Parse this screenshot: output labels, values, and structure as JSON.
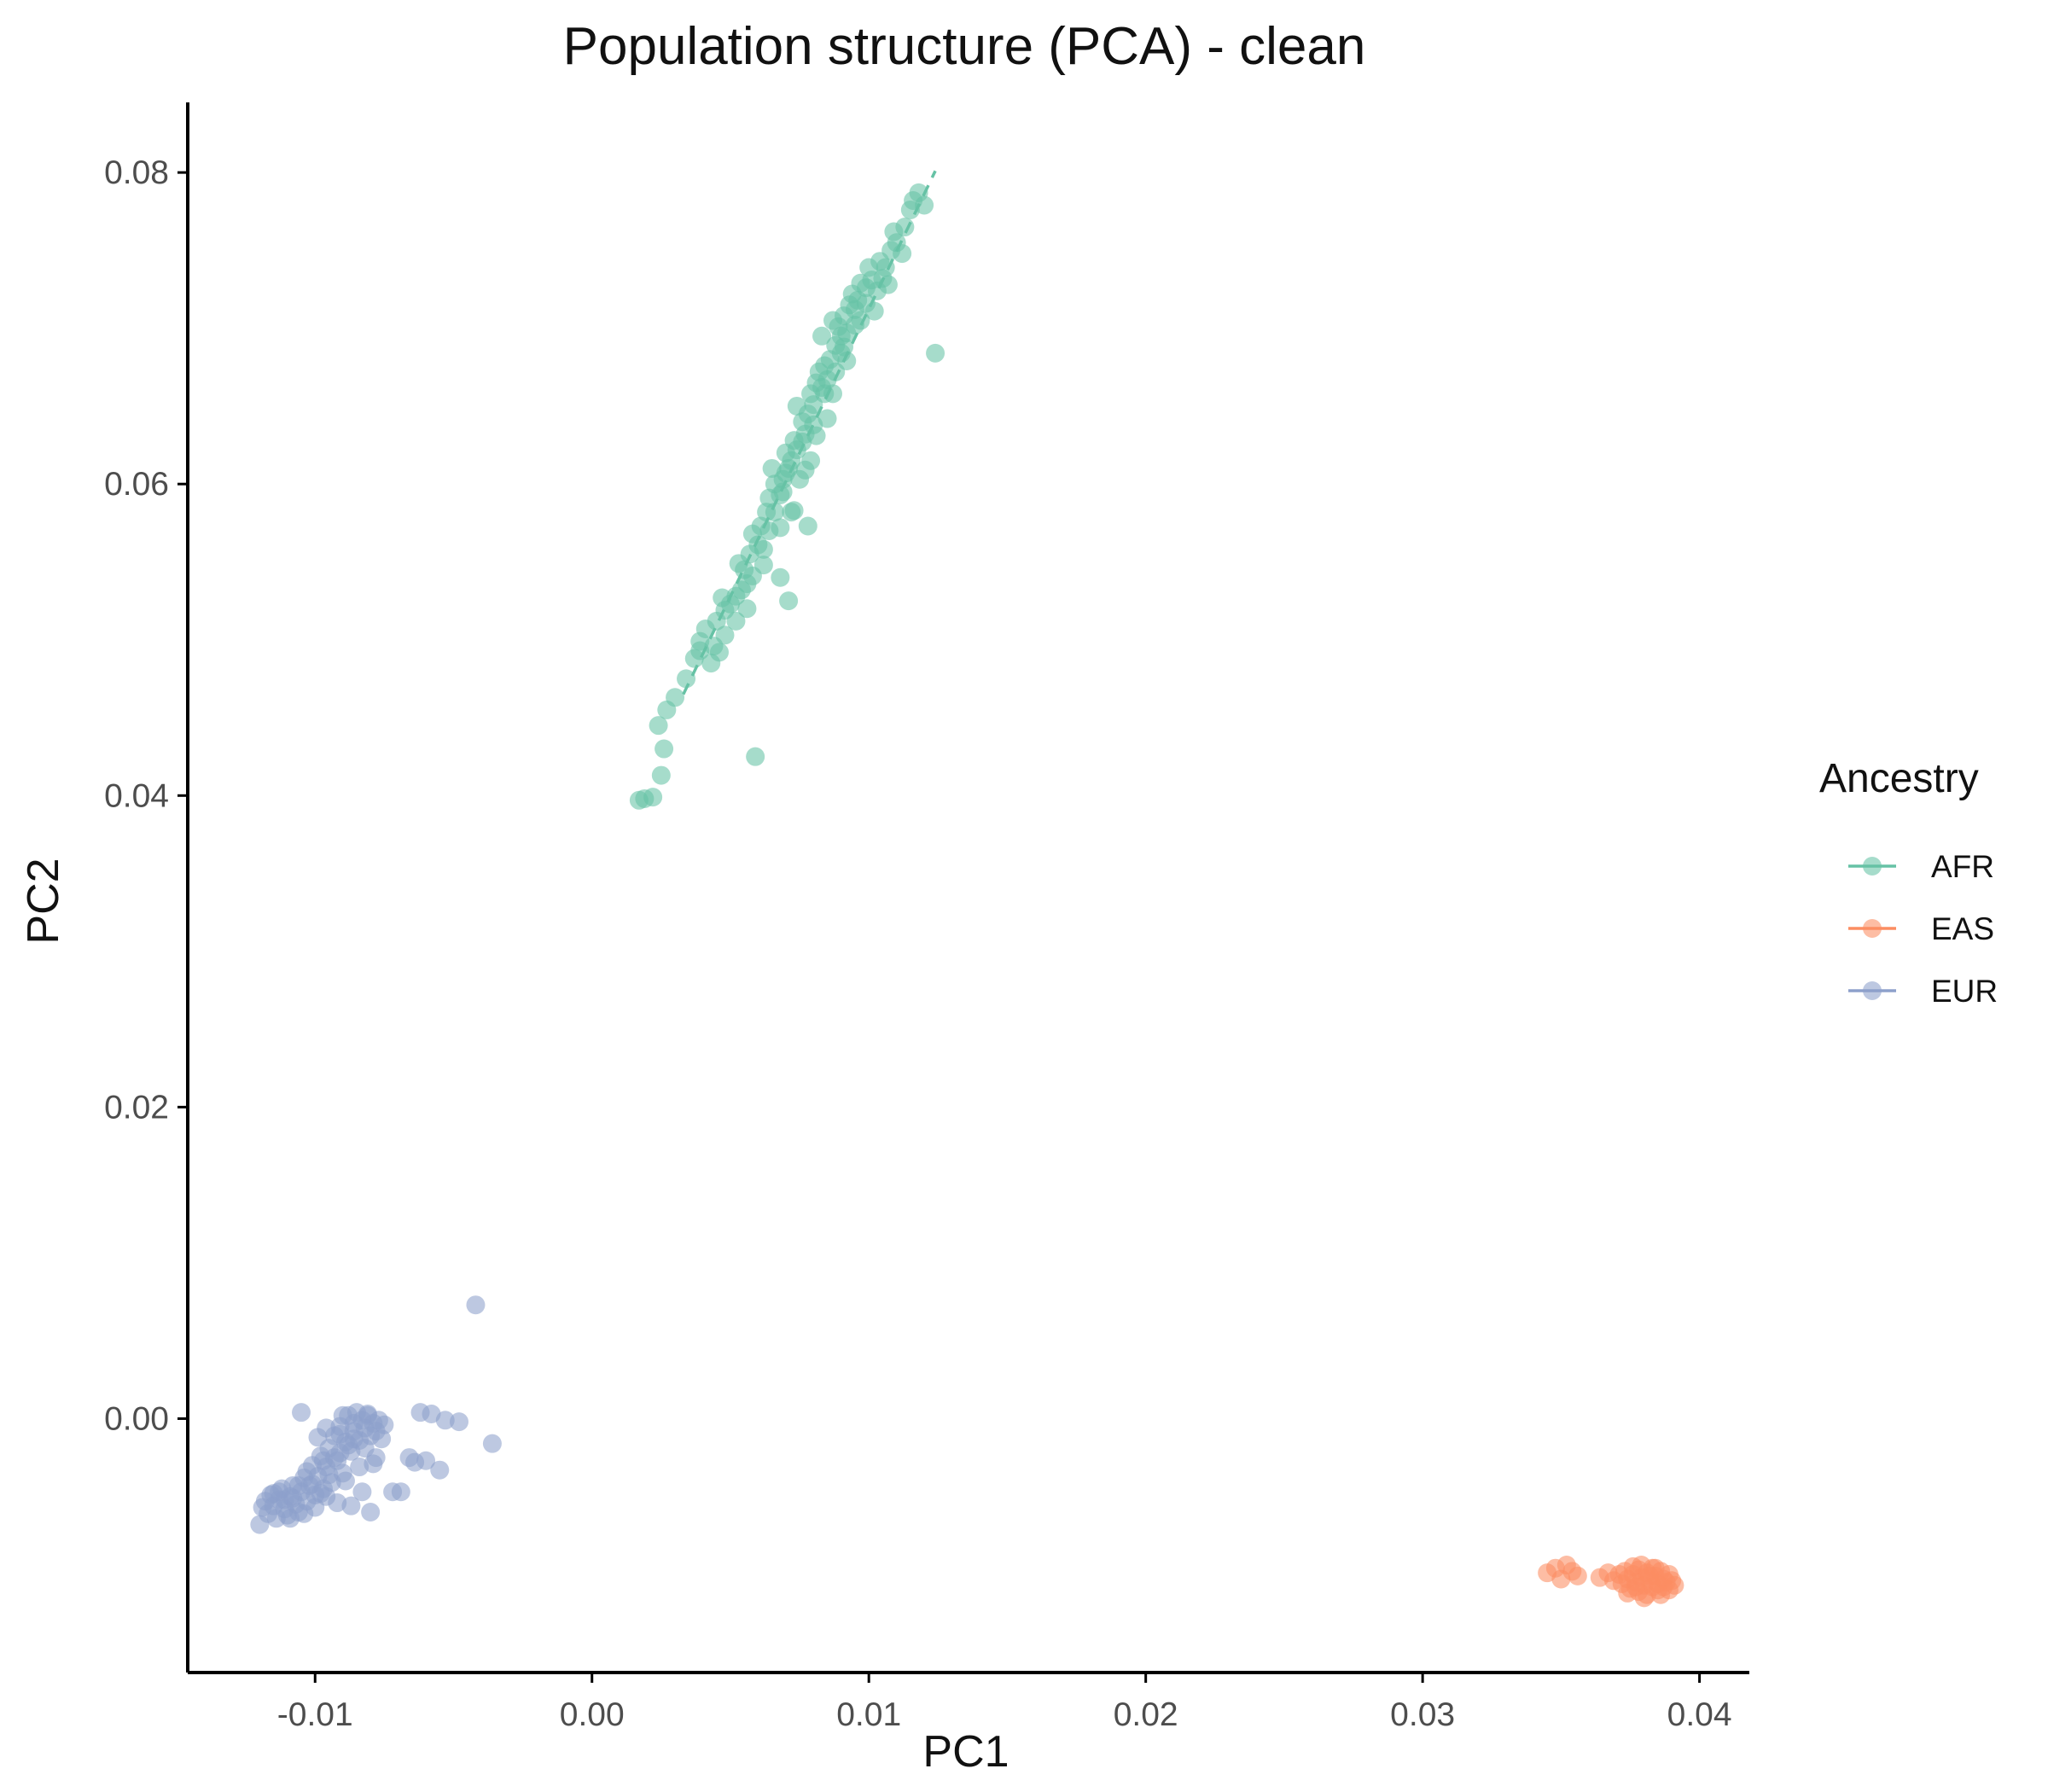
{
  "chart_data": {
    "type": "scatter",
    "title": "Population structure (PCA) - clean",
    "xlabel": "PC1",
    "ylabel": "PC2",
    "xlim": [
      -0.0146,
      0.0418
    ],
    "ylim": [
      -0.0163,
      0.0845
    ],
    "x_ticks": [
      -0.01,
      0.0,
      0.01,
      0.02,
      0.03,
      0.04
    ],
    "x_tick_labels": [
      "-0.01",
      "0.00",
      "0.01",
      "0.02",
      "0.03",
      "0.04"
    ],
    "y_ticks": [
      0.0,
      0.02,
      0.04,
      0.06,
      0.08
    ],
    "y_tick_labels": [
      "0.00",
      "0.02",
      "0.04",
      "0.06",
      "0.08"
    ],
    "grid": false,
    "legend": {
      "title": "Ancestry",
      "position": "right"
    },
    "series": [
      {
        "name": "AFR",
        "color": "#66c2a5",
        "trend_line": {
          "style": "dashed",
          "x": [
            0.0033,
            0.0124
          ],
          "y": [
            0.0465,
            0.0801
          ]
        },
        "points": [
          [
            0.0017,
            0.0397
          ],
          [
            0.0019,
            0.0398
          ],
          [
            0.0022,
            0.0399
          ],
          [
            0.0025,
            0.0413
          ],
          [
            0.0026,
            0.043
          ],
          [
            0.0024,
            0.0445
          ],
          [
            0.0027,
            0.0455
          ],
          [
            0.003,
            0.0463
          ],
          [
            0.0034,
            0.0475
          ],
          [
            0.0037,
            0.0488
          ],
          [
            0.0039,
            0.0499
          ],
          [
            0.0041,
            0.0507
          ],
          [
            0.0044,
            0.0496
          ],
          [
            0.0046,
            0.0492
          ],
          [
            0.0045,
            0.0512
          ],
          [
            0.0048,
            0.0519
          ],
          [
            0.005,
            0.0523
          ],
          [
            0.0052,
            0.0528
          ],
          [
            0.0054,
            0.0532
          ],
          [
            0.0056,
            0.052
          ],
          [
            0.0055,
            0.0545
          ],
          [
            0.0058,
            0.0541
          ],
          [
            0.0057,
            0.0555
          ],
          [
            0.006,
            0.0561
          ],
          [
            0.0059,
            0.0425
          ],
          [
            0.0062,
            0.0558
          ],
          [
            0.0061,
            0.0573
          ],
          [
            0.0064,
            0.057
          ],
          [
            0.0063,
            0.0582
          ],
          [
            0.0066,
            0.0582
          ],
          [
            0.0068,
            0.0593
          ],
          [
            0.0066,
            0.06
          ],
          [
            0.0069,
            0.0603
          ],
          [
            0.0071,
            0.061
          ],
          [
            0.0068,
            0.054
          ],
          [
            0.0071,
            0.0525
          ],
          [
            0.007,
            0.062
          ],
          [
            0.0072,
            0.0615
          ],
          [
            0.0073,
            0.0628
          ],
          [
            0.0074,
            0.0622
          ],
          [
            0.0075,
            0.0603
          ],
          [
            0.0077,
            0.0632
          ],
          [
            0.0076,
            0.064
          ],
          [
            0.0078,
            0.0645
          ],
          [
            0.008,
            0.0651
          ],
          [
            0.0079,
            0.0658
          ],
          [
            0.0081,
            0.0665
          ],
          [
            0.0083,
            0.0662
          ],
          [
            0.0082,
            0.0672
          ],
          [
            0.0084,
            0.0676
          ],
          [
            0.0086,
            0.068
          ],
          [
            0.0085,
            0.0667
          ],
          [
            0.0088,
            0.0689
          ],
          [
            0.0087,
            0.0658
          ],
          [
            0.009,
            0.0695
          ],
          [
            0.0089,
            0.0701
          ],
          [
            0.0092,
            0.0697
          ],
          [
            0.0091,
            0.0708
          ],
          [
            0.0093,
            0.0715
          ],
          [
            0.0095,
            0.0712
          ],
          [
            0.0094,
            0.0722
          ],
          [
            0.0096,
            0.0718
          ],
          [
            0.0097,
            0.0729
          ],
          [
            0.0099,
            0.0726
          ],
          [
            0.0101,
            0.0731
          ],
          [
            0.01,
            0.0739
          ],
          [
            0.0103,
            0.0724
          ],
          [
            0.0104,
            0.0743
          ],
          [
            0.0106,
            0.0739
          ],
          [
            0.0108,
            0.075
          ],
          [
            0.011,
            0.0755
          ],
          [
            0.0109,
            0.0762
          ],
          [
            0.0112,
            0.0748
          ],
          [
            0.0113,
            0.0765
          ],
          [
            0.0115,
            0.0776
          ],
          [
            0.0116,
            0.0782
          ],
          [
            0.0118,
            0.0787
          ],
          [
            0.012,
            0.0779
          ],
          [
            0.0124,
            0.0684
          ],
          [
            0.0078,
            0.0573
          ],
          [
            0.0072,
            0.0582
          ],
          [
            0.0069,
            0.0595
          ],
          [
            0.0065,
            0.061
          ],
          [
            0.0079,
            0.0615
          ],
          [
            0.0074,
            0.065
          ],
          [
            0.0083,
            0.0695
          ],
          [
            0.0087,
            0.0705
          ],
          [
            0.0091,
            0.0688
          ],
          [
            0.0097,
            0.0705
          ],
          [
            0.0102,
            0.0711
          ],
          [
            0.0092,
            0.0679
          ],
          [
            0.0085,
            0.0642
          ],
          [
            0.0081,
            0.0631
          ],
          [
            0.0077,
            0.0609
          ],
          [
            0.0073,
            0.0583
          ],
          [
            0.0068,
            0.0572
          ],
          [
            0.0062,
            0.0548
          ],
          [
            0.0056,
            0.0536
          ],
          [
            0.0052,
            0.0512
          ],
          [
            0.0048,
            0.0503
          ],
          [
            0.0043,
            0.0485
          ],
          [
            0.0039,
            0.0493
          ],
          [
            0.0047,
            0.0527
          ],
          [
            0.0053,
            0.0549
          ],
          [
            0.0058,
            0.0568
          ],
          [
            0.0064,
            0.0591
          ],
          [
            0.007,
            0.0607
          ],
          [
            0.0076,
            0.0627
          ],
          [
            0.008,
            0.0638
          ],
          [
            0.0084,
            0.0658
          ],
          [
            0.0088,
            0.0672
          ],
          [
            0.009,
            0.0684
          ],
          [
            0.0095,
            0.0702
          ],
          [
            0.0099,
            0.0716
          ],
          [
            0.0105,
            0.0732
          ],
          [
            0.0107,
            0.0728
          ]
        ]
      },
      {
        "name": "EAS",
        "color": "#fc8d62",
        "points": [
          [
            0.0345,
            -0.0099
          ],
          [
            0.0348,
            -0.0096
          ],
          [
            0.035,
            -0.0103
          ],
          [
            0.0352,
            -0.0094
          ],
          [
            0.0354,
            -0.0098
          ],
          [
            0.0356,
            -0.0101
          ],
          [
            0.0364,
            -0.0102
          ],
          [
            0.0367,
            -0.0099
          ],
          [
            0.0369,
            -0.0104
          ],
          [
            0.0371,
            -0.01
          ],
          [
            0.0372,
            -0.0106
          ],
          [
            0.0373,
            -0.0098
          ],
          [
            0.0374,
            -0.0103
          ],
          [
            0.0375,
            -0.0109
          ],
          [
            0.0376,
            -0.01
          ],
          [
            0.0377,
            -0.0105
          ],
          [
            0.0378,
            -0.0097
          ],
          [
            0.0378,
            -0.0111
          ],
          [
            0.0379,
            -0.0102
          ],
          [
            0.038,
            -0.0107
          ],
          [
            0.0381,
            -0.0099
          ],
          [
            0.0381,
            -0.0113
          ],
          [
            0.0382,
            -0.0104
          ],
          [
            0.0383,
            -0.0108
          ],
          [
            0.0383,
            -0.0096
          ],
          [
            0.0384,
            -0.0101
          ],
          [
            0.0385,
            -0.0106
          ],
          [
            0.0385,
            -0.011
          ],
          [
            0.0386,
            -0.0098
          ],
          [
            0.0387,
            -0.0103
          ],
          [
            0.0387,
            -0.0108
          ],
          [
            0.0388,
            -0.0105
          ],
          [
            0.0389,
            -0.01
          ],
          [
            0.0389,
            -0.011
          ],
          [
            0.039,
            -0.0104
          ],
          [
            0.0391,
            -0.0107
          ],
          [
            0.0376,
            -0.0095
          ],
          [
            0.038,
            -0.0115
          ],
          [
            0.0374,
            -0.0112
          ],
          [
            0.0386,
            -0.0113
          ],
          [
            0.0379,
            -0.0094
          ],
          [
            0.0384,
            -0.0096
          ],
          [
            0.0377,
            -0.0108
          ],
          [
            0.0382,
            -0.0101
          ]
        ]
      },
      {
        "name": "EUR",
        "color": "#8da0cb",
        "points": [
          [
            -0.012,
            -0.0068
          ],
          [
            -0.0119,
            -0.0057
          ],
          [
            -0.0118,
            -0.0053
          ],
          [
            -0.0117,
            -0.0061
          ],
          [
            -0.0116,
            -0.0049
          ],
          [
            -0.0115,
            -0.0056
          ],
          [
            -0.0114,
            -0.0064
          ],
          [
            -0.0113,
            -0.0052
          ],
          [
            -0.0112,
            -0.0045
          ],
          [
            -0.0111,
            -0.0058
          ],
          [
            -0.011,
            -0.0062
          ],
          [
            -0.0109,
            -0.005
          ],
          [
            -0.0108,
            -0.0043
          ],
          [
            -0.0107,
            -0.0055
          ],
          [
            -0.0106,
            -0.006
          ],
          [
            -0.0105,
            -0.0047
          ],
          [
            -0.0104,
            -0.0038
          ],
          [
            -0.0103,
            -0.0053
          ],
          [
            -0.0102,
            -0.0043
          ],
          [
            -0.0101,
            -0.003
          ],
          [
            -0.01,
            -0.0049
          ],
          [
            -0.0099,
            -0.0037
          ],
          [
            -0.0098,
            -0.0024
          ],
          [
            -0.0097,
            -0.0045
          ],
          [
            -0.0096,
            -0.0031
          ],
          [
            -0.0095,
            -0.0019
          ],
          [
            -0.0094,
            -0.0041
          ],
          [
            -0.0093,
            -0.0011
          ],
          [
            -0.0092,
            -0.0027
          ],
          [
            -0.0091,
            -0.0005
          ],
          [
            -0.009,
            -0.0035
          ],
          [
            -0.0089,
            -0.0015
          ],
          [
            -0.0088,
            0.0002
          ],
          [
            -0.0087,
            -0.0021
          ],
          [
            -0.0086,
            -0.0008
          ],
          [
            -0.0085,
            0.0004
          ],
          [
            -0.0084,
            -0.0014
          ],
          [
            -0.0083,
            -0.0001
          ],
          [
            -0.0082,
            -0.0006
          ],
          [
            -0.0081,
            0.0003
          ],
          [
            -0.008,
            -0.0011
          ],
          [
            -0.0079,
            -0.0003
          ],
          [
            -0.0078,
            -0.0008
          ],
          [
            -0.0077,
            -0.0001
          ],
          [
            -0.0076,
            -0.0013
          ],
          [
            -0.0075,
            -0.0004
          ],
          [
            -0.0105,
            0.0004
          ],
          [
            -0.009,
            0.0002
          ],
          [
            -0.0081,
            0.0002
          ],
          [
            -0.0088,
            -0.0017
          ],
          [
            -0.0097,
            -0.0027
          ],
          [
            -0.0079,
            -0.0029
          ],
          [
            -0.0083,
            -0.0047
          ],
          [
            -0.0087,
            -0.0056
          ],
          [
            -0.008,
            -0.006
          ],
          [
            -0.0072,
            -0.0047
          ],
          [
            -0.0069,
            -0.0047
          ],
          [
            -0.0066,
            -0.0025
          ],
          [
            -0.0062,
            0.0004
          ],
          [
            -0.006,
            -0.0027
          ],
          [
            -0.0058,
            0.0003
          ],
          [
            -0.0055,
            -0.0033
          ],
          [
            -0.0053,
            -0.0001
          ],
          [
            -0.0048,
            -0.0002
          ],
          [
            -0.0036,
            -0.0016
          ],
          [
            -0.0042,
            0.0073
          ],
          [
            -0.0064,
            -0.0028
          ],
          [
            -0.0092,
            -0.0054
          ],
          [
            -0.01,
            -0.0057
          ],
          [
            -0.0108,
            -0.0051
          ],
          [
            -0.0113,
            -0.0047
          ],
          [
            -0.0101,
            -0.0042
          ],
          [
            -0.0095,
            -0.0036
          ],
          [
            -0.0091,
            -0.0022
          ],
          [
            -0.0086,
            -0.0013
          ],
          [
            -0.0093,
            -0.0025
          ],
          [
            -0.0103,
            -0.0034
          ],
          [
            -0.0098,
            -0.0048
          ],
          [
            -0.0106,
            -0.0043
          ],
          [
            -0.0111,
            -0.0052
          ],
          [
            -0.0115,
            -0.0048
          ],
          [
            -0.0109,
            -0.0064
          ],
          [
            -0.0104,
            -0.0061
          ],
          [
            -0.0096,
            -0.005
          ],
          [
            -0.0089,
            -0.004
          ],
          [
            -0.0084,
            -0.0031
          ],
          [
            -0.0078,
            -0.0025
          ],
          [
            -0.0082,
            -0.0019
          ],
          [
            -0.0099,
            -0.0012
          ],
          [
            -0.0096,
            -0.0006
          ],
          [
            -0.0086,
            -0.0003
          ],
          [
            -0.0091,
            -0.001
          ]
        ]
      }
    ]
  }
}
